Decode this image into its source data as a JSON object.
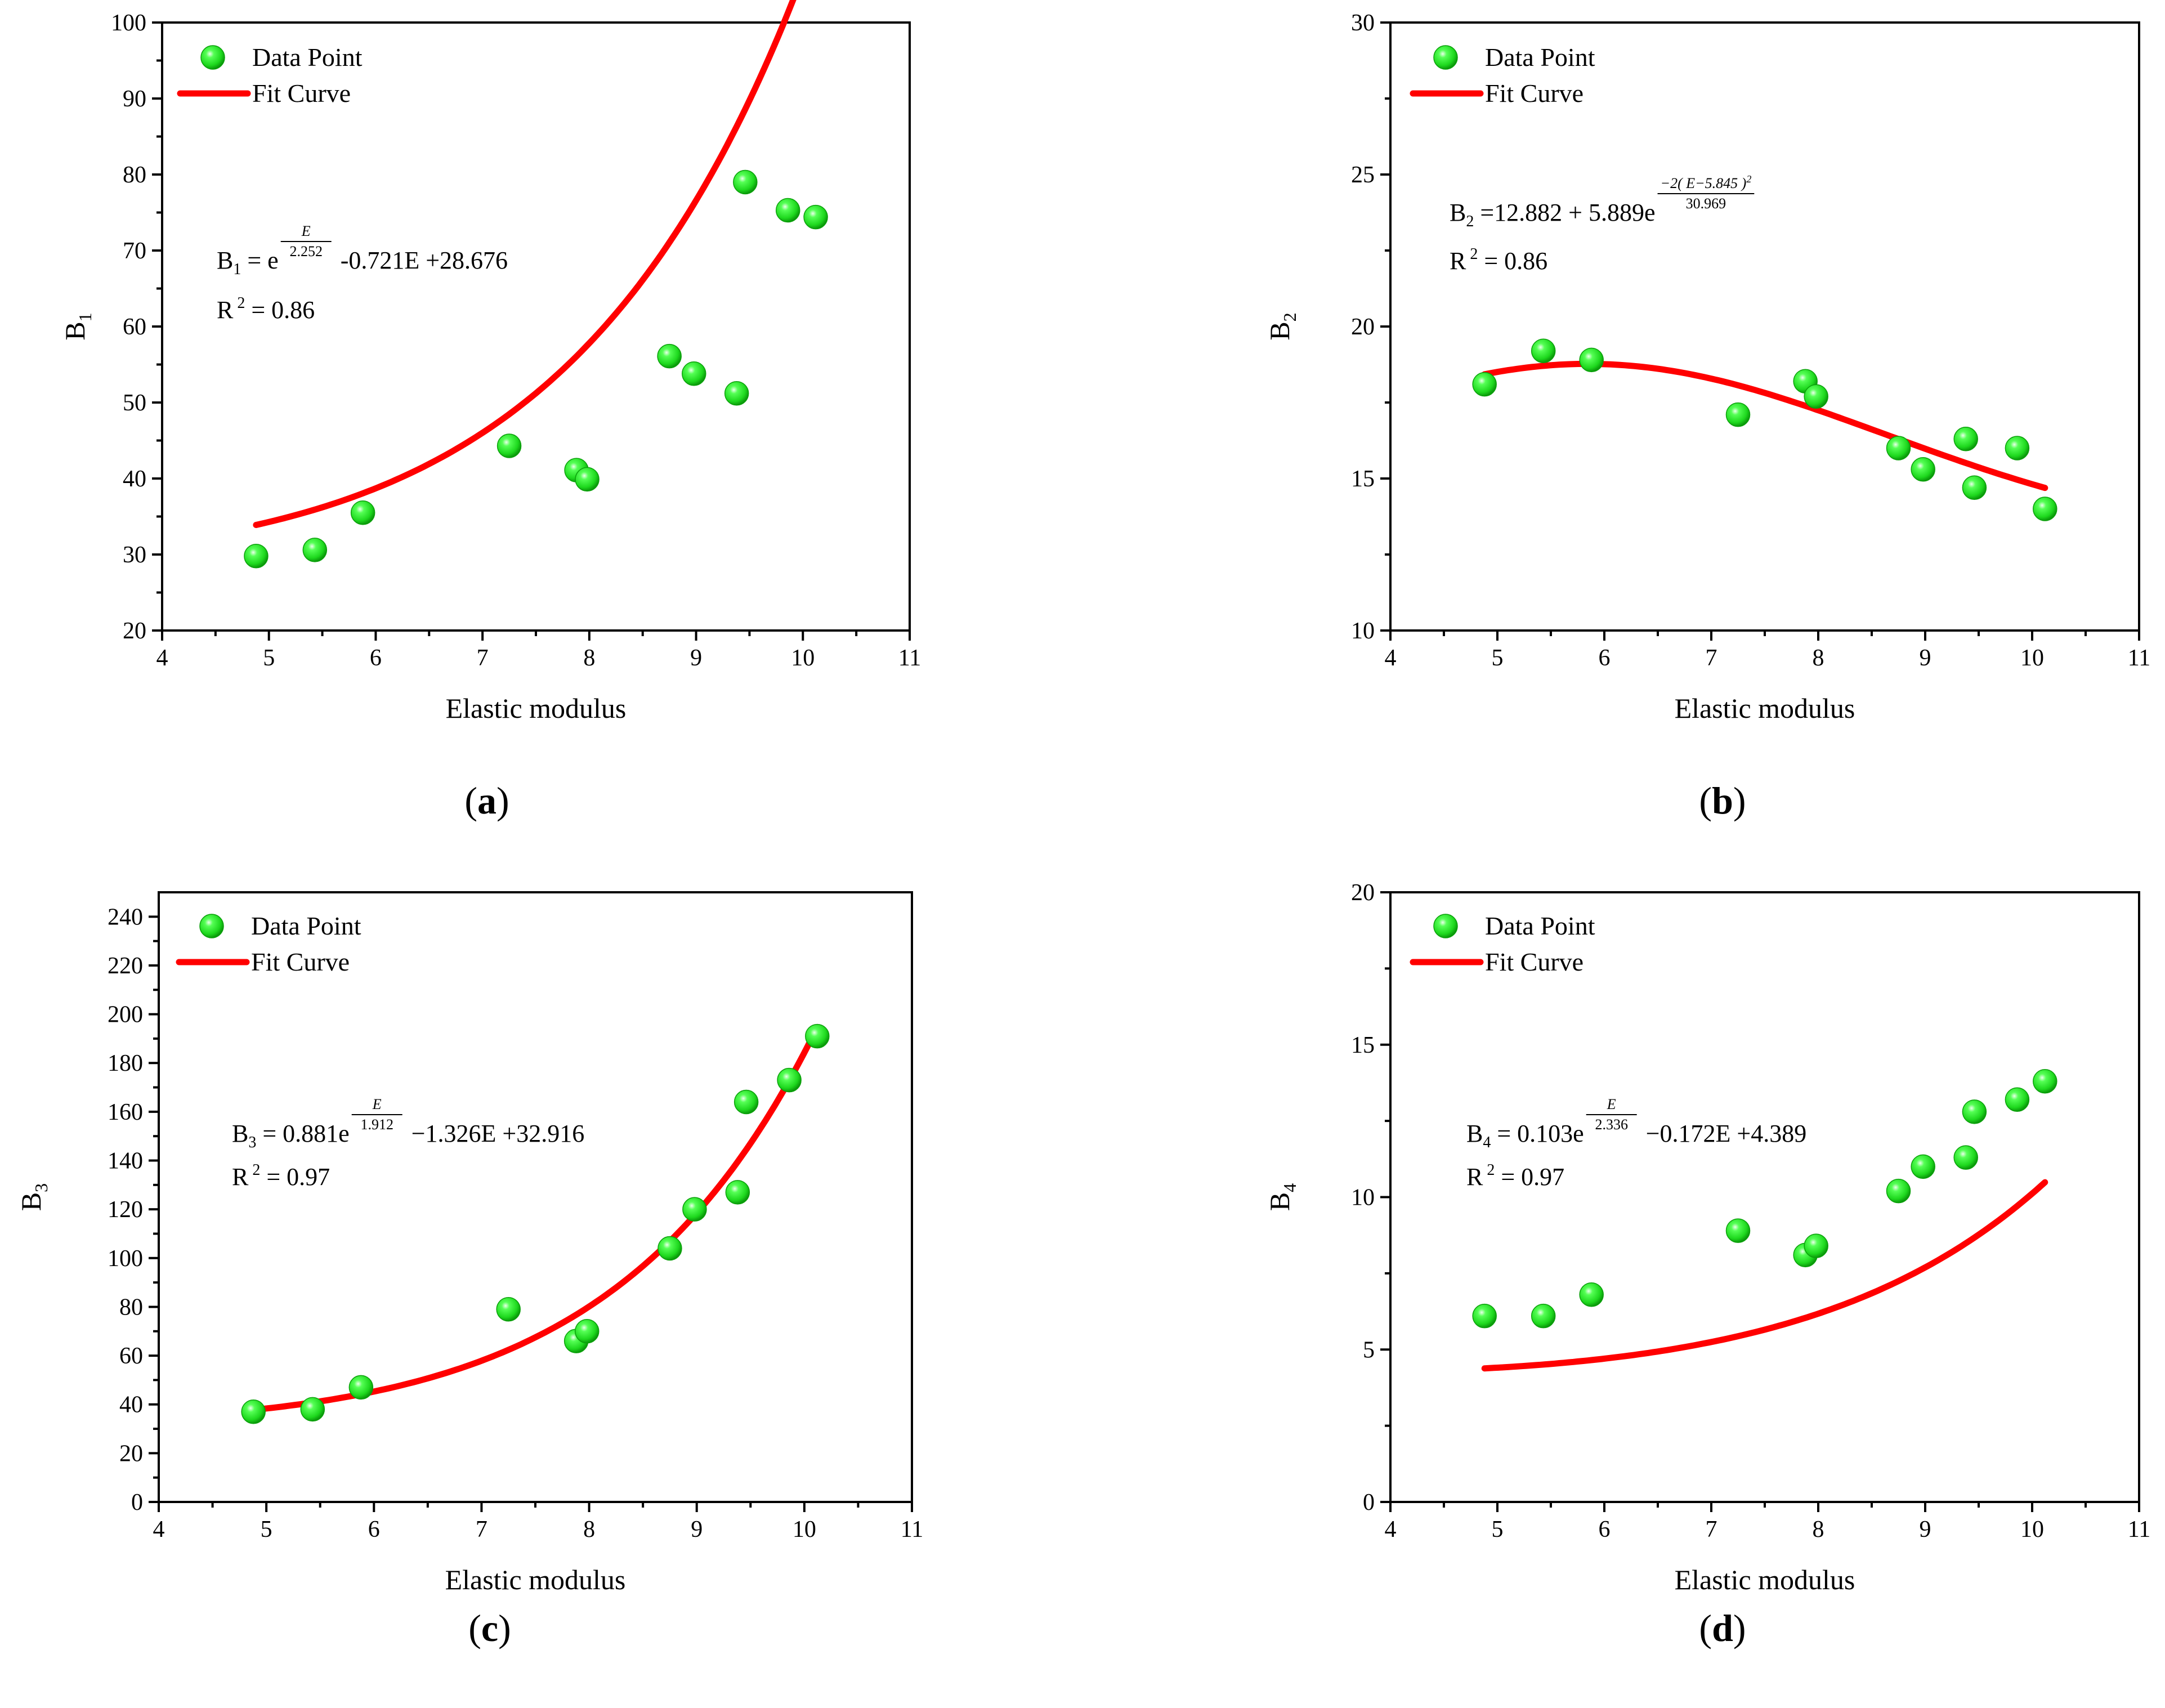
{
  "legend": {
    "data_point": "Data Point",
    "fit_curve": "Fit Curve"
  },
  "colors": {
    "point": "#22ee22",
    "point_edge": "#0aa00a",
    "curve": "#ff0000",
    "axis": "#000000"
  },
  "chart_data": [
    {
      "type": "scatter",
      "panel": "a",
      "xlabel": "Elastic modulus",
      "ylabel_main": "B",
      "ylabel_sub": "1",
      "xlim": [
        4,
        11
      ],
      "ylim": [
        20,
        100
      ],
      "xticks": [
        4,
        5,
        6,
        7,
        8,
        9,
        10,
        11
      ],
      "yticks": [
        20,
        30,
        40,
        50,
        60,
        70,
        80,
        90,
        100
      ],
      "legend_position": "top-left",
      "points": {
        "x": [
          4.88,
          5.43,
          5.88,
          7.25,
          7.88,
          7.98,
          8.75,
          8.98,
          9.38,
          9.46,
          9.86,
          10.12
        ],
        "y": [
          29.8,
          30.6,
          35.5,
          44.3,
          41.1,
          39.9,
          56.1,
          53.8,
          51.2,
          79.0,
          75.3,
          74.4
        ]
      },
      "fit": {
        "model": "exp_linear",
        "a": 1,
        "b": 2.252,
        "c": -0.721,
        "d": 28.676,
        "x_range": [
          4.88,
          10.12
        ]
      },
      "equation": {
        "lhs": "B",
        "lhs_sub": "1",
        "prefix": "= e",
        "exp_num": "E",
        "exp_den": "2.252",
        "suffix": "-0.721E +28.676"
      },
      "r2": {
        "label": "R",
        "sup": "2",
        "value": "= 0.86"
      },
      "panel_label": {
        "open": "(",
        "letter": "a",
        "close": ")"
      }
    },
    {
      "type": "scatter",
      "panel": "b",
      "xlabel": "Elastic modulus",
      "ylabel_main": "B",
      "ylabel_sub": "2",
      "xlim": [
        4,
        11
      ],
      "ylim": [
        10,
        30
      ],
      "xticks": [
        4,
        5,
        6,
        7,
        8,
        9,
        10,
        11
      ],
      "yticks": [
        10,
        15,
        20,
        25,
        30
      ],
      "legend_position": "top-left",
      "points": {
        "x": [
          4.88,
          5.43,
          5.88,
          7.25,
          7.88,
          7.98,
          8.75,
          8.98,
          9.38,
          9.46,
          9.86,
          10.12
        ],
        "y": [
          18.1,
          19.2,
          18.9,
          17.1,
          18.2,
          17.7,
          16.0,
          15.3,
          16.3,
          14.7,
          16.0,
          14.0
        ]
      },
      "fit": {
        "model": "gauss",
        "y0": 12.882,
        "A": 5.889,
        "xc": 5.845,
        "w2": 30.969,
        "x_range": [
          4.88,
          10.12
        ]
      },
      "equation": {
        "lhs": "B",
        "lhs_sub": "2",
        "prefix": "=12.882 + 5.889e",
        "exp_num": "−2( E−5.845 )",
        "exp_num_sup": "2",
        "exp_den": "30.969",
        "suffix": ""
      },
      "r2": {
        "label": "R",
        "sup": "2",
        "value": "= 0.86"
      },
      "panel_label": {
        "open": "(",
        "letter": "b",
        "close": ")"
      }
    },
    {
      "type": "scatter",
      "panel": "c",
      "xlabel": "Elastic modulus",
      "ylabel_main": "B",
      "ylabel_sub": "3",
      "xlim": [
        4,
        11
      ],
      "ylim": [
        0,
        250
      ],
      "xticks": [
        4,
        5,
        6,
        7,
        8,
        9,
        10,
        11
      ],
      "yticks": [
        0,
        20,
        40,
        60,
        80,
        100,
        120,
        140,
        160,
        180,
        200,
        220,
        240
      ],
      "legend_position": "top-left",
      "points": {
        "x": [
          4.88,
          5.43,
          5.88,
          7.25,
          7.88,
          7.98,
          8.75,
          8.98,
          9.38,
          9.46,
          9.86,
          10.12
        ],
        "y": [
          37,
          38,
          47,
          79,
          66,
          70,
          104,
          120,
          127,
          164,
          173,
          191
        ]
      },
      "fit": {
        "model": "exp_linear",
        "a": 0.881,
        "b": 1.912,
        "c": -1.326,
        "d": 32.916,
        "x_range": [
          4.88,
          10.12
        ]
      },
      "equation": {
        "lhs": "B",
        "lhs_sub": "3",
        "prefix": "= 0.881e",
        "exp_num": "E",
        "exp_den": "1.912",
        "suffix": "−1.326E +32.916"
      },
      "r2": {
        "label": "R",
        "sup": "2",
        "value": "= 0.97"
      },
      "panel_label": {
        "open": "(",
        "letter": "c",
        "close": ")"
      }
    },
    {
      "type": "scatter",
      "panel": "d",
      "xlabel": "Elastic modulus",
      "ylabel_main": "B",
      "ylabel_sub": "4",
      "xlim": [
        4,
        11
      ],
      "ylim": [
        0,
        20
      ],
      "xticks": [
        4,
        5,
        6,
        7,
        8,
        9,
        10,
        11
      ],
      "yticks": [
        0,
        5,
        10,
        15,
        20
      ],
      "legend_position": "top-left",
      "points": {
        "x": [
          4.88,
          5.43,
          5.88,
          7.25,
          7.88,
          7.98,
          8.75,
          8.98,
          9.38,
          9.46,
          9.86,
          10.12
        ],
        "y": [
          6.1,
          6.1,
          6.8,
          8.9,
          8.1,
          8.4,
          10.2,
          11.0,
          11.3,
          12.8,
          13.2,
          13.8
        ]
      },
      "fit": {
        "model": "exp_linear",
        "a": 0.103,
        "b": 2.336,
        "c": -0.172,
        "d": 4.389,
        "x_range": [
          4.88,
          10.12
        ]
      },
      "equation": {
        "lhs": "B",
        "lhs_sub": "4",
        "prefix": "= 0.103e",
        "exp_num": "E",
        "exp_den": "2.336",
        "suffix": "−0.172E +4.389"
      },
      "r2": {
        "label": "R",
        "sup": "2",
        "value": "= 0.97"
      },
      "panel_label": {
        "open": "(",
        "letter": "d",
        "close": ")"
      }
    }
  ]
}
